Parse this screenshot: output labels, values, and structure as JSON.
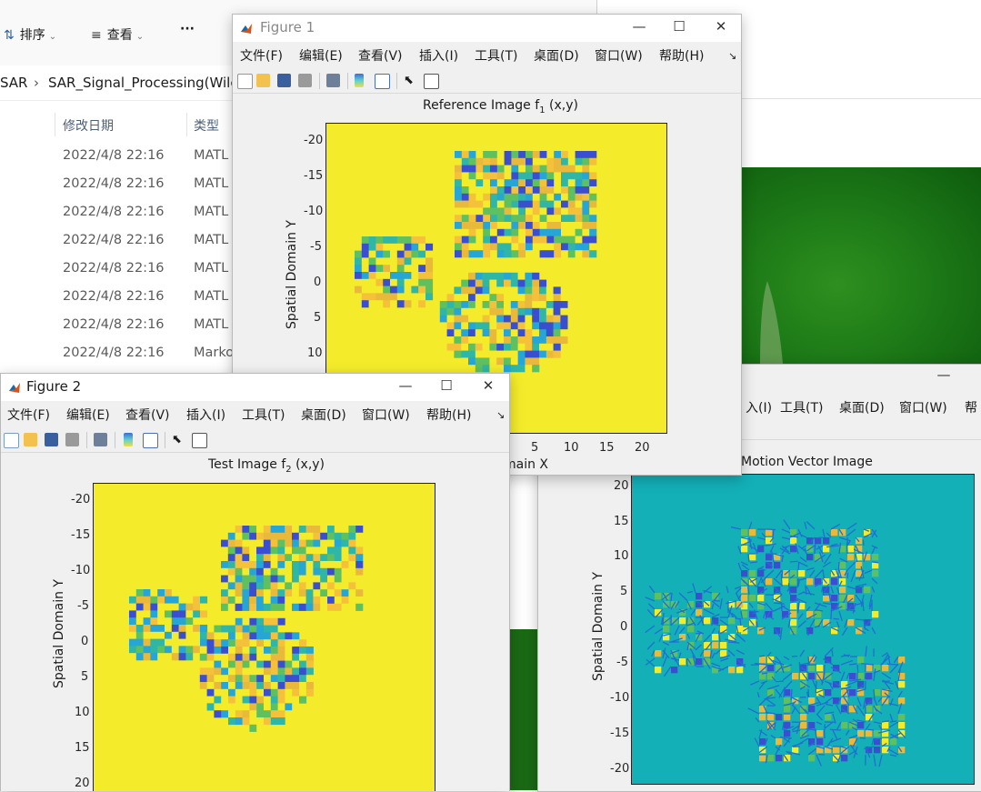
{
  "explorer": {
    "toolbar": {
      "sort_label": "排序",
      "view_label": "查看",
      "more_label": "···"
    },
    "breadcrumb": {
      "segment_1": "SAR",
      "separator": "›",
      "segment_2": "SAR_Signal_Processing(Wile"
    },
    "columns": {
      "date": "修改日期",
      "type": "类型"
    },
    "rows": [
      {
        "date": "2022/4/8 22:16",
        "type": "MATL"
      },
      {
        "date": "2022/4/8 22:16",
        "type": "MATL"
      },
      {
        "date": "2022/4/8 22:16",
        "type": "MATL"
      },
      {
        "date": "2022/4/8 22:16",
        "type": "MATL"
      },
      {
        "date": "2022/4/8 22:16",
        "type": "MATL"
      },
      {
        "date": "2022/4/8 22:16",
        "type": "MATL"
      },
      {
        "date": "2022/4/8 22:16",
        "type": "MATL"
      },
      {
        "date": "2022/4/8 22:16",
        "type": "Marko"
      }
    ]
  },
  "figure1": {
    "title": "Figure 1",
    "menu": [
      "文件(F)",
      "编辑(E)",
      "查看(V)",
      "插入(I)",
      "工具(T)",
      "桌面(D)",
      "窗口(W)",
      "帮助(H)"
    ],
    "menu_more": "↘",
    "plot_title": "Reference Image f",
    "plot_title_sub": "1",
    "plot_title_tail": " (x,y)",
    "ylabel": "Spatial Domain Y",
    "xlabel_fragment": "main X",
    "yticks": [
      "-20",
      "-15",
      "-10",
      "-5",
      "0",
      "5",
      "10"
    ],
    "xticks": [
      "5",
      "10",
      "15",
      "20"
    ]
  },
  "figure2": {
    "title": "Figure 2",
    "menu": [
      "文件(F)",
      "编辑(E)",
      "查看(V)",
      "插入(I)",
      "工具(T)",
      "桌面(D)",
      "窗口(W)",
      "帮助(H)"
    ],
    "menu_more": "↘",
    "plot_title": "Test Image f",
    "plot_title_sub": "2",
    "plot_title_tail": " (x,y)",
    "ylabel": "Spatial Domain Y",
    "yticks": [
      "-20",
      "-15",
      "-10",
      "-5",
      "0",
      "5",
      "10",
      "15",
      "20"
    ]
  },
  "figure3": {
    "menu_partial": [
      "入(I)",
      "工具(T)",
      "桌面(D)",
      "窗口(W)",
      "帮"
    ],
    "plot_title": "Motion Vector Image",
    "ylabel": "Spatial Domain Y",
    "yticks": [
      "20",
      "15",
      "10",
      "5",
      "0",
      "-5",
      "-10",
      "-15",
      "-20"
    ]
  },
  "colors": {
    "plot_yellow": "#f4ec2a",
    "plot_teal": "#13b0b8",
    "arrow_blue": "#1f6fd1",
    "green_photo": "#1d7a17"
  }
}
